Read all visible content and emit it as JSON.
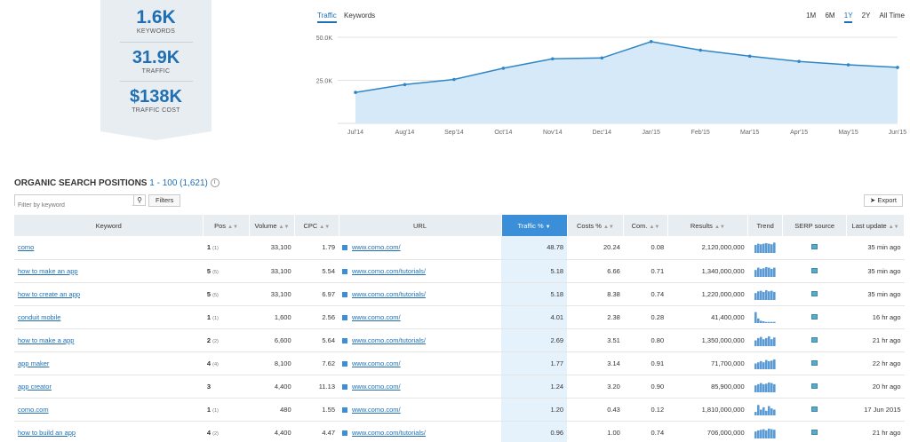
{
  "summary": {
    "keywords_value": "1.6K",
    "keywords_label": "KEYWORDS",
    "traffic_value": "31.9K",
    "traffic_label": "TRAFFIC",
    "cost_value": "$138K",
    "cost_label": "TRAFFIC COST"
  },
  "chart_tabs": [
    "Traffic",
    "Keywords"
  ],
  "ranges": [
    "1M",
    "6M",
    "1Y",
    "2Y",
    "All Time"
  ],
  "chart_data": {
    "type": "area",
    "x": [
      "Jul'14",
      "Aug'14",
      "Sep'14",
      "Oct'14",
      "Nov'14",
      "Dec'14",
      "Jan'15",
      "Feb'15",
      "Mar'15",
      "Apr'15",
      "May'15",
      "Jun'15"
    ],
    "values": [
      18000,
      22500,
      25500,
      32000,
      37500,
      38000,
      47500,
      42500,
      39000,
      36000,
      34000,
      32500
    ],
    "ytick_labels": [
      "50.0K",
      "25.0K"
    ],
    "ytick_values": [
      50000,
      25000
    ],
    "ylim": [
      0,
      50000
    ],
    "color": "#2f86c6",
    "fill": "#d6e9f8",
    "grid": true
  },
  "section": {
    "title": "ORGANIC SEARCH POSITIONS",
    "range": "1 - 100 (1,621)"
  },
  "filter": {
    "placeholder": "Filter by keyword"
  },
  "buttons": {
    "filters": "Filters",
    "export": "Export"
  },
  "columns": [
    "Keyword",
    "Pos",
    "Volume",
    "CPC",
    "URL",
    "Traffic %",
    "Costs %",
    "Com.",
    "Results",
    "Trend",
    "SERP source",
    "Last update"
  ],
  "rows": [
    {
      "keyword": "como",
      "pos": "1",
      "prev": "(1)",
      "volume": "33,100",
      "cpc": "1.79",
      "url": "www.como.com/",
      "traffic": "48.78",
      "costs": "20.24",
      "com": "0.08",
      "results": "2,120,000,000",
      "updated": "35 min ago",
      "trend": [
        0.7,
        0.8,
        0.75,
        0.8,
        0.85,
        0.8,
        0.75,
        0.9
      ]
    },
    {
      "keyword": "how to make an app",
      "pos": "5",
      "prev": "(5)",
      "volume": "33,100",
      "cpc": "5.54",
      "url": "www.como.com/tutorials/",
      "traffic": "5.18",
      "costs": "6.66",
      "com": "0.71",
      "results": "1,340,000,000",
      "updated": "35 min ago",
      "trend": [
        0.6,
        0.8,
        0.7,
        0.75,
        0.85,
        0.8,
        0.7,
        0.8
      ]
    },
    {
      "keyword": "how to create an app",
      "pos": "5",
      "prev": "(5)",
      "volume": "33,100",
      "cpc": "6.97",
      "url": "www.como.com/tutorials/",
      "traffic": "5.18",
      "costs": "8.38",
      "com": "0.74",
      "results": "1,220,000,000",
      "updated": "35 min ago",
      "trend": [
        0.6,
        0.75,
        0.8,
        0.7,
        0.85,
        0.75,
        0.8,
        0.7
      ]
    },
    {
      "keyword": "conduit mobile",
      "pos": "1",
      "prev": "(1)",
      "volume": "1,600",
      "cpc": "2.56",
      "url": "www.como.com/",
      "traffic": "4.01",
      "costs": "2.38",
      "com": "0.28",
      "results": "41,400,000",
      "updated": "16 hr ago",
      "trend": [
        0.95,
        0.4,
        0.2,
        0.15,
        0.1,
        0.1,
        0.1,
        0.1
      ]
    },
    {
      "keyword": "how to make a app",
      "pos": "2",
      "prev": "(2)",
      "volume": "6,600",
      "cpc": "5.64",
      "url": "www.como.com/tutorials/",
      "traffic": "2.69",
      "costs": "3.51",
      "com": "0.80",
      "results": "1,350,000,000",
      "updated": "21 hr ago",
      "trend": [
        0.5,
        0.7,
        0.8,
        0.6,
        0.7,
        0.85,
        0.6,
        0.75
      ]
    },
    {
      "keyword": "app maker",
      "pos": "4",
      "prev": "(4)",
      "volume": "8,100",
      "cpc": "7.62",
      "url": "www.como.com/",
      "traffic": "1.77",
      "costs": "3.14",
      "com": "0.91",
      "results": "71,700,000",
      "updated": "22 hr ago",
      "trend": [
        0.5,
        0.6,
        0.7,
        0.6,
        0.8,
        0.7,
        0.75,
        0.85
      ]
    },
    {
      "keyword": "app creator",
      "pos": "3",
      "prev": "",
      "volume": "4,400",
      "cpc": "11.13",
      "url": "www.como.com/",
      "traffic": "1.24",
      "costs": "3.20",
      "com": "0.90",
      "results": "85,900,000",
      "updated": "20 hr ago",
      "trend": [
        0.6,
        0.7,
        0.8,
        0.7,
        0.75,
        0.85,
        0.8,
        0.7
      ]
    },
    {
      "keyword": "como.com",
      "pos": "1",
      "prev": "(1)",
      "volume": "480",
      "cpc": "1.55",
      "url": "www.como.com/",
      "traffic": "1.20",
      "costs": "0.43",
      "com": "0.12",
      "results": "1,810,000,000",
      "updated": "17 Jun 2015",
      "trend": [
        0.3,
        0.9,
        0.5,
        0.7,
        0.4,
        0.8,
        0.6,
        0.5
      ]
    },
    {
      "keyword": "how to build an app",
      "pos": "4",
      "prev": "(2)",
      "volume": "4,400",
      "cpc": "4.47",
      "url": "www.como.com/tutorials/",
      "traffic": "0.96",
      "costs": "1.00",
      "com": "0.74",
      "results": "706,000,000",
      "updated": "21 hr ago",
      "trend": [
        0.6,
        0.7,
        0.75,
        0.8,
        0.7,
        0.85,
        0.8,
        0.75
      ]
    }
  ]
}
